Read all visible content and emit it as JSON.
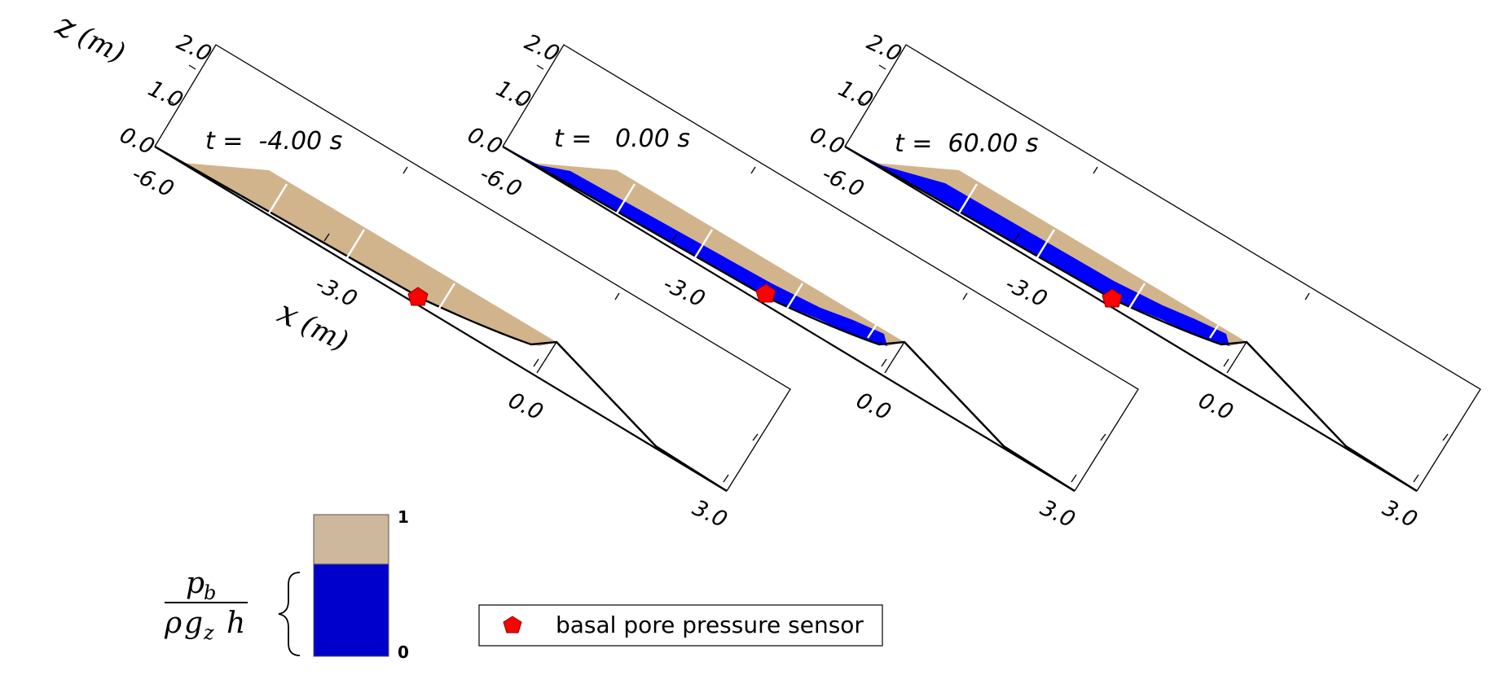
{
  "axes": {
    "z_label": "z",
    "z_unit": "(m)",
    "x_label": "x",
    "x_unit": "(m)",
    "z_ticks": [
      "0.0",
      "1.0",
      "2.0"
    ],
    "x_ticks": [
      "-6.0",
      "-3.0",
      "0.0",
      "3.0"
    ]
  },
  "panels": [
    {
      "time_label": "t =  -4.00 s",
      "time_s": -4.0,
      "blue_extent": "none"
    },
    {
      "time_label": "t =   0.00 s",
      "time_s": 0.0,
      "blue_extent": "full"
    },
    {
      "time_label": "t =  60.00 s",
      "time_s": 60.0,
      "blue_extent": "full"
    }
  ],
  "colorbar": {
    "label_top": "1",
    "label_bottom": "0",
    "quantity": {
      "numerator": "p",
      "numerator_sub": "b",
      "denominator_rho": "ρ",
      "denominator_g": "g",
      "denominator_g_sub": "z",
      "denominator_h": "h"
    },
    "blue_fraction": 0.65
  },
  "legend": {
    "sensor_label": "basal pore pressure sensor"
  },
  "colors": {
    "sediment": "#d2b48c",
    "colorbar_top": "#cdb89e",
    "saturated": "#0000ff",
    "colorbar_blue": "#0000cc",
    "sensor": "#ff0000",
    "line": "#000000"
  }
}
